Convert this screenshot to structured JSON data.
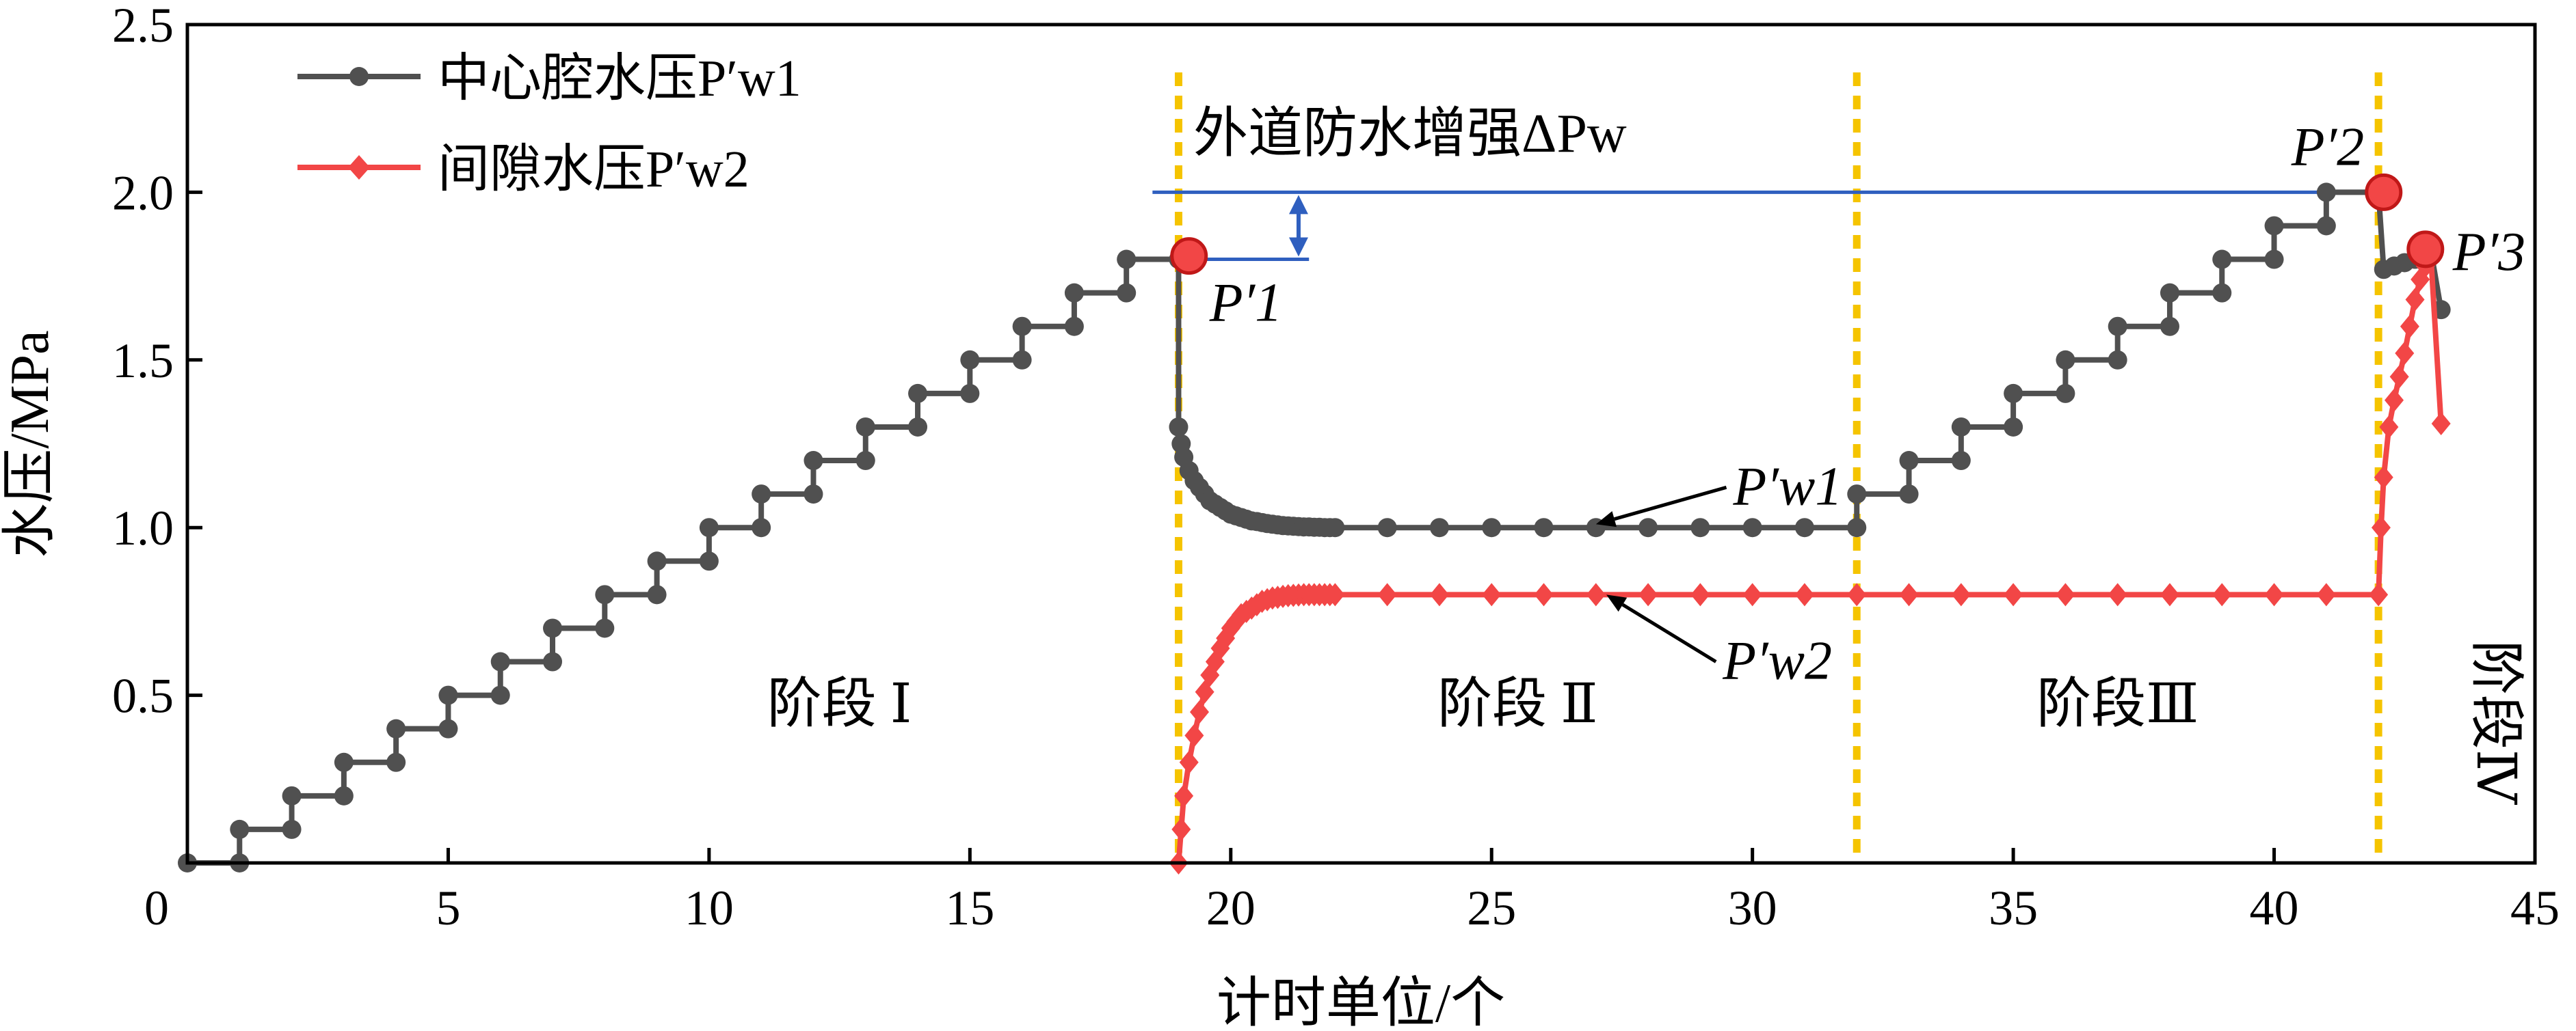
{
  "chart_data": {
    "type": "line",
    "xlabel": "计时单位/个",
    "ylabel": "水压/MPa",
    "xlim": [
      0,
      45
    ],
    "ylim": [
      0,
      2.5
    ],
    "xticks": [
      0,
      5,
      10,
      15,
      20,
      25,
      30,
      35,
      40,
      45
    ],
    "yticks": [
      0.5,
      1.0,
      1.5,
      2.0,
      2.5
    ],
    "xtick_labels": [
      "0",
      "5",
      "10",
      "15",
      "20",
      "25",
      "30",
      "35",
      "40",
      "45"
    ],
    "ytick_labels": [
      "0.5",
      "1.0",
      "1.5",
      "2.0",
      "2.5"
    ],
    "grid": false,
    "legend_position": "top-left",
    "stage_boundaries": [
      19,
      32,
      42
    ],
    "stages": [
      {
        "label": "阶段 Ⅰ",
        "x": 12.5,
        "y": 0.42,
        "vertical": false
      },
      {
        "label": "阶段 Ⅱ",
        "x": 25.5,
        "y": 0.42,
        "vertical": false
      },
      {
        "label": "阶段Ⅲ",
        "x": 37,
        "y": 0.42,
        "vertical": false
      },
      {
        "label": "阶段Ⅳ",
        "x": 43.9,
        "y": 0.42,
        "vertical": true
      }
    ],
    "series": [
      {
        "name": "中心腔水压P′w1",
        "color": "#505050",
        "marker": "circle",
        "x": [
          0,
          1,
          1,
          2,
          2,
          3,
          3,
          4,
          4,
          5,
          5,
          6,
          6,
          7,
          7,
          8,
          8,
          9,
          9,
          10,
          10,
          11,
          11,
          12,
          12,
          13,
          13,
          14,
          14,
          15,
          15,
          16,
          16,
          17,
          17,
          18,
          18,
          19,
          19,
          19.05,
          19.1,
          19.2,
          19.3,
          19.4,
          19.5,
          19.6,
          19.7,
          19.8,
          19.9,
          20,
          20.1,
          20.2,
          20.3,
          20.4,
          20.5,
          20.6,
          20.7,
          20.8,
          20.9,
          21,
          21.1,
          21.2,
          21.3,
          21.4,
          21.5,
          21.6,
          21.7,
          21.8,
          21.9,
          22,
          23,
          24,
          25,
          26,
          27,
          28,
          29,
          30,
          31,
          32,
          32,
          33,
          33,
          34,
          34,
          35,
          35,
          36,
          36,
          37,
          37,
          38,
          38,
          39,
          39,
          40,
          40,
          41,
          41,
          42,
          42.1,
          42.3,
          42.5,
          42.7,
          43,
          43.2
        ],
        "y": [
          0,
          0,
          0.1,
          0.1,
          0.2,
          0.2,
          0.3,
          0.3,
          0.4,
          0.4,
          0.5,
          0.5,
          0.6,
          0.6,
          0.7,
          0.7,
          0.8,
          0.8,
          0.9,
          0.9,
          1.0,
          1.0,
          1.1,
          1.1,
          1.2,
          1.2,
          1.3,
          1.3,
          1.4,
          1.4,
          1.5,
          1.5,
          1.6,
          1.6,
          1.7,
          1.7,
          1.8,
          1.8,
          1.3,
          1.25,
          1.21,
          1.17,
          1.14,
          1.12,
          1.1,
          1.08,
          1.07,
          1.06,
          1.05,
          1.04,
          1.035,
          1.03,
          1.025,
          1.02,
          1.018,
          1.015,
          1.012,
          1.01,
          1.008,
          1.006,
          1.005,
          1.004,
          1.003,
          1.002,
          1.002,
          1.001,
          1.001,
          1.0,
          1.0,
          1.0,
          1.0,
          1.0,
          1.0,
          1.0,
          1.0,
          1.0,
          1.0,
          1.0,
          1.0,
          1.0,
          1.1,
          1.1,
          1.2,
          1.2,
          1.3,
          1.3,
          1.4,
          1.4,
          1.5,
          1.5,
          1.6,
          1.6,
          1.7,
          1.7,
          1.8,
          1.8,
          1.9,
          1.9,
          2.0,
          2.0,
          1.77,
          1.78,
          1.79,
          1.8,
          1.83,
          1.65
        ]
      },
      {
        "name": "间隙水压P′w2",
        "color": "#f24646",
        "marker": "diamond",
        "x": [
          19,
          19.05,
          19.1,
          19.2,
          19.3,
          19.4,
          19.5,
          19.6,
          19.7,
          19.8,
          19.9,
          20,
          20.1,
          20.2,
          20.3,
          20.4,
          20.5,
          20.6,
          20.7,
          20.8,
          20.9,
          21,
          21.1,
          21.2,
          21.3,
          21.4,
          21.5,
          21.6,
          21.7,
          21.8,
          21.9,
          22,
          23,
          24,
          25,
          26,
          27,
          28,
          29,
          30,
          31,
          32,
          33,
          34,
          35,
          36,
          37,
          38,
          39,
          40,
          41,
          42,
          42.05,
          42.1,
          42.2,
          42.3,
          42.4,
          42.5,
          42.6,
          42.7,
          42.8,
          42.9,
          43,
          43.2
        ],
        "y": [
          0,
          0.1,
          0.2,
          0.3,
          0.38,
          0.45,
          0.51,
          0.56,
          0.6,
          0.64,
          0.67,
          0.7,
          0.72,
          0.74,
          0.75,
          0.76,
          0.77,
          0.78,
          0.785,
          0.79,
          0.792,
          0.795,
          0.797,
          0.798,
          0.799,
          0.8,
          0.8,
          0.8,
          0.8,
          0.8,
          0.8,
          0.8,
          0.8,
          0.8,
          0.8,
          0.8,
          0.8,
          0.8,
          0.8,
          0.8,
          0.8,
          0.8,
          0.8,
          0.8,
          0.8,
          0.8,
          0.8,
          0.8,
          0.8,
          0.8,
          0.8,
          0.8,
          1.0,
          1.15,
          1.3,
          1.38,
          1.45,
          1.52,
          1.6,
          1.68,
          1.74,
          1.78,
          1.82,
          1.31
        ]
      }
    ],
    "key_points": [
      {
        "label": "P′1",
        "x": 19.2,
        "y": 1.81
      },
      {
        "label": "P′2",
        "x": 42.1,
        "y": 2.0
      },
      {
        "label": "P′3",
        "x": 42.9,
        "y": 1.83
      }
    ],
    "delta_annotation": {
      "label": "外道防水增强ΔPw",
      "upper_y": 2.0,
      "lower_y": 1.8,
      "upper_x": [
        18.5,
        41.9
      ],
      "lower_x": [
        19.3,
        21.5
      ],
      "arrow_x": 21.3
    },
    "curve_labels": [
      {
        "label": "P′w1",
        "x": 29.5,
        "y": 1.12
      },
      {
        "label": "P′w2",
        "x": 29.3,
        "y": 0.6
      }
    ]
  },
  "colors": {
    "w1": "#505050",
    "w2": "#f24646",
    "boundary": "#f5c400",
    "annotation": "#2f5fbf",
    "key_point": "#f24646"
  }
}
